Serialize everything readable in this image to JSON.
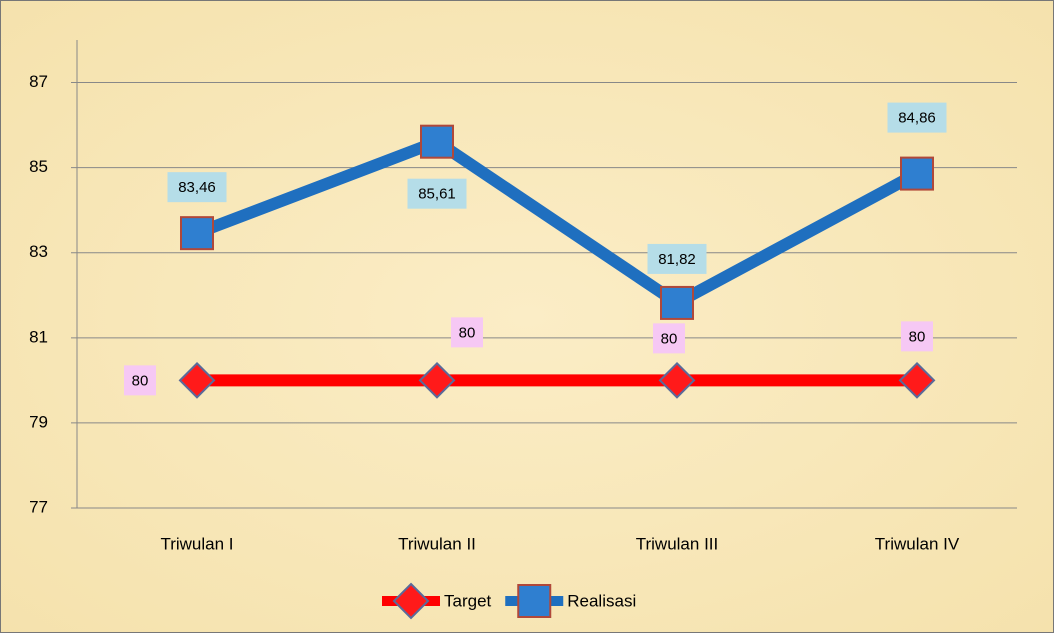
{
  "chart_data": {
    "type": "line",
    "categories": [
      "Triwulan I",
      "Triwulan II",
      "Triwulan III",
      "Triwulan IV"
    ],
    "series": [
      {
        "name": "Target",
        "color": "#ff0000",
        "values": [
          80,
          80,
          80,
          80
        ]
      },
      {
        "name": "Realisasi",
        "color": "#1f6fbf",
        "values": [
          83.46,
          85.61,
          81.82,
          84.86
        ],
        "value_labels": [
          "83,46",
          "85,61",
          "81,82",
          "84,86"
        ]
      }
    ],
    "ylim": [
      77,
      88
    ],
    "yticks": [
      77,
      79,
      81,
      83,
      85,
      87
    ],
    "grid": true,
    "legend": "bottom"
  }
}
